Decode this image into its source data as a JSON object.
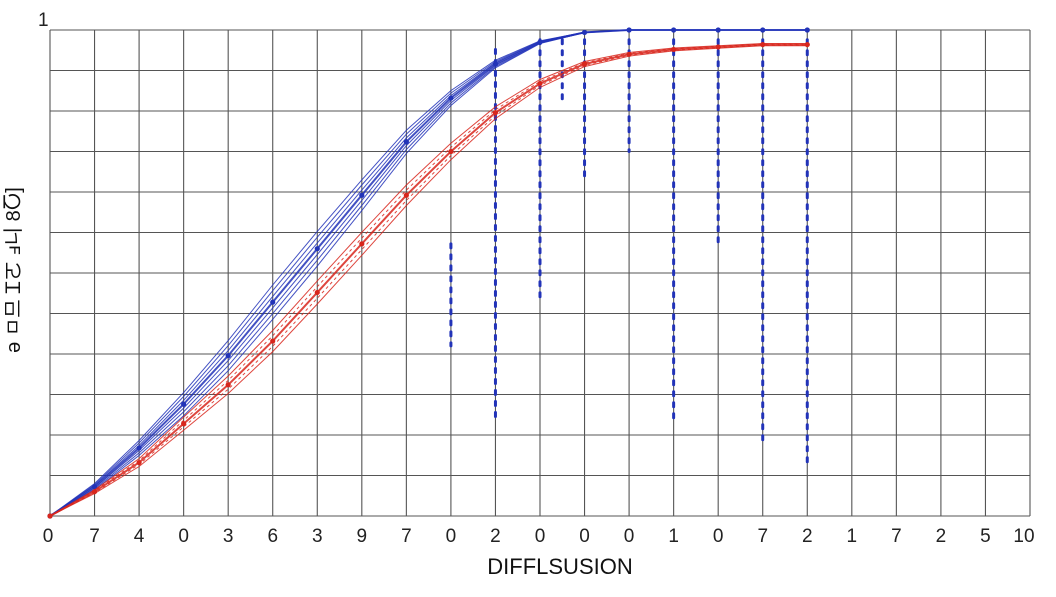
{
  "chart_data": {
    "type": "line",
    "title": "",
    "xlabel": "DIFFLSUSION",
    "ylabel": "ǝ ㅁ므 Ꮖㄛ ⅎ니 8Ⴀ]",
    "y_top_label": "1",
    "x_tick_labels": [
      "0",
      "7",
      "4",
      "0",
      "3",
      "6",
      "3",
      "9",
      "7",
      "0",
      "2",
      "0",
      "0",
      "0",
      "1",
      "0",
      "7",
      "2",
      "1",
      "7",
      "2",
      "5",
      "10"
    ],
    "xlim": [
      0,
      22
    ],
    "ylim": [
      0,
      1
    ],
    "grid": true,
    "colors": {
      "blue": "#2233b8",
      "red": "#d8261c",
      "grid": "#555555"
    },
    "series": [
      {
        "color": "blue",
        "x": [
          0,
          1,
          2,
          3,
          4,
          5,
          6,
          7,
          8,
          9,
          10,
          11,
          12,
          13,
          14,
          15,
          16,
          17
        ],
        "y": [
          0,
          0.06,
          0.14,
          0.23,
          0.33,
          0.44,
          0.55,
          0.66,
          0.77,
          0.86,
          0.93,
          0.975,
          0.995,
          1.0,
          1.0,
          1.0,
          1.0,
          1.0
        ]
      },
      {
        "color": "red",
        "x": [
          0,
          1,
          2,
          3,
          4,
          5,
          6,
          7,
          8,
          9,
          10,
          11,
          12,
          13,
          14,
          15,
          16,
          17
        ],
        "y": [
          0,
          0.05,
          0.11,
          0.19,
          0.27,
          0.36,
          0.46,
          0.56,
          0.66,
          0.75,
          0.83,
          0.89,
          0.93,
          0.95,
          0.96,
          0.965,
          0.97,
          0.97
        ]
      }
    ],
    "dotted_columns": {
      "color": "blue",
      "x": [
        9,
        10,
        11,
        11.5,
        12,
        13,
        14,
        15,
        16,
        17
      ],
      "y_top": [
        0.56,
        0.96,
        0.98,
        0.98,
        0.98,
        0.98,
        0.98,
        0.98,
        0.98,
        0.98
      ],
      "y_bottom": [
        0.35,
        0.2,
        0.45,
        0.85,
        0.7,
        0.75,
        0.2,
        0.55,
        0.15,
        0.1
      ]
    }
  }
}
